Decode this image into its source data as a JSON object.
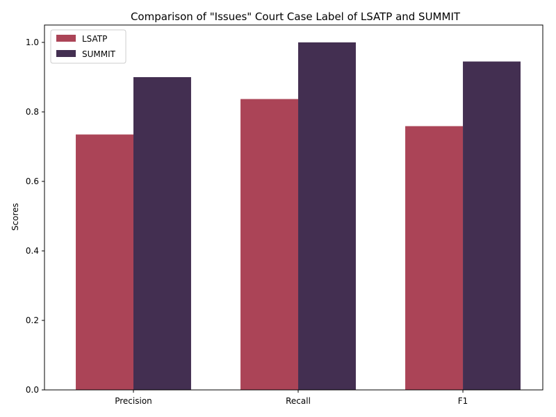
{
  "chart_data": {
    "type": "bar",
    "title": "Comparison of \"Issues\" Court Case Label of LSATP and SUMMIT",
    "xlabel": "",
    "ylabel": "Scores",
    "categories": [
      "Precision",
      "Recall",
      "F1"
    ],
    "series": [
      {
        "name": "LSATP",
        "values": [
          0.735,
          0.837,
          0.759
        ],
        "color": "#ab4457"
      },
      {
        "name": "SUMMIT",
        "values": [
          0.9,
          1.0,
          0.945
        ],
        "color": "#432f51"
      }
    ],
    "ylim": [
      0,
      1.05
    ],
    "yticks": [
      "0.0",
      "0.2",
      "0.4",
      "0.6",
      "0.8",
      "1.0"
    ],
    "grid": false,
    "legend": "top-left"
  }
}
